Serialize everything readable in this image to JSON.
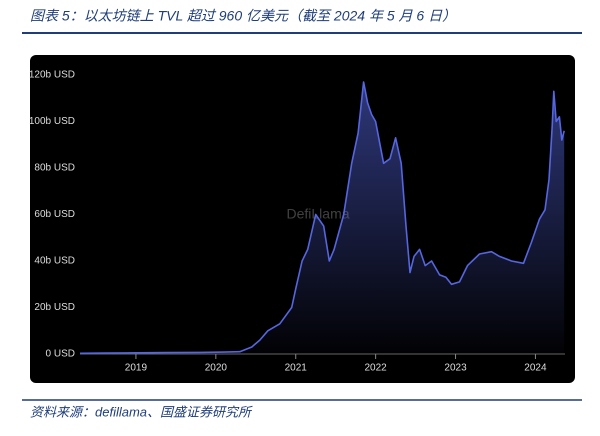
{
  "chart_data": {
    "type": "area",
    "title": "图表 5：以太坊链上 TVL 超过 960 亿美元（截至 2024 年 5 月 6 日）",
    "source": "资料来源：defillama、国盛证券研究所",
    "watermark": "DefiLlama",
    "color": "#5566e0",
    "x": [
      2018.3,
      2018.6,
      2019.0,
      2019.4,
      2019.8,
      2020.1,
      2020.3,
      2020.45,
      2020.55,
      2020.65,
      2020.8,
      2020.95,
      2021.0,
      2021.08,
      2021.15,
      2021.25,
      2021.35,
      2021.42,
      2021.48,
      2021.6,
      2021.7,
      2021.78,
      2021.85,
      2021.9,
      2021.95,
      2022.0,
      2022.1,
      2022.18,
      2022.25,
      2022.32,
      2022.38,
      2022.43,
      2022.48,
      2022.55,
      2022.62,
      2022.7,
      2022.8,
      2022.88,
      2022.95,
      2023.05,
      2023.15,
      2023.3,
      2023.45,
      2023.55,
      2023.7,
      2023.85,
      2023.95,
      2024.05,
      2024.12,
      2024.17,
      2024.21,
      2024.23,
      2024.26,
      2024.3,
      2024.33,
      2024.36
    ],
    "values": [
      0.3,
      0.4,
      0.5,
      0.6,
      0.7,
      0.8,
      1.0,
      3,
      6,
      10,
      13,
      20,
      28,
      40,
      45,
      60,
      55,
      40,
      45,
      60,
      82,
      95,
      117,
      108,
      103,
      100,
      82,
      84,
      93,
      82,
      55,
      35,
      42,
      45,
      38,
      40,
      34,
      33,
      30,
      31,
      38,
      43,
      44,
      42,
      40,
      39,
      48,
      58,
      62,
      75,
      98,
      113,
      100,
      102,
      92,
      96
    ],
    "ylim": [
      0,
      120
    ],
    "yticks": [
      {
        "value": 0,
        "label": "0 USD"
      },
      {
        "value": 20,
        "label": "20b USD"
      },
      {
        "value": 40,
        "label": "40b USD"
      },
      {
        "value": 60,
        "label": "60b USD"
      },
      {
        "value": 80,
        "label": "80b USD"
      },
      {
        "value": 100,
        "label": "100b USD"
      },
      {
        "value": 120,
        "label": "120b USD"
      }
    ],
    "xlim": [
      2018.3,
      2024.37
    ],
    "xticks": [
      2019,
      2020,
      2021,
      2022,
      2023,
      2024
    ],
    "grid": false
  }
}
